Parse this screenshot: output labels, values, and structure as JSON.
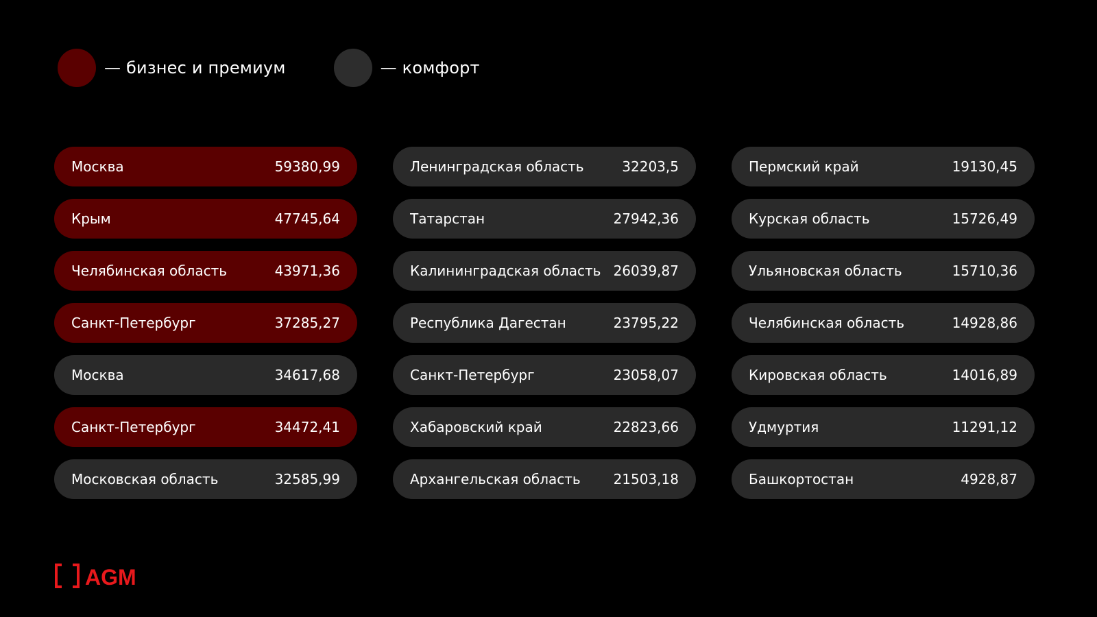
{
  "colors": {
    "premium": "#5a0000",
    "comfort": "#2a2a2a",
    "legend_premium_dot": "#5a0000",
    "legend_comfort_dot": "#2d2d2d",
    "brand": "#e8191c"
  },
  "legend": [
    {
      "category": "premium",
      "label": "— бизнес и премиум"
    },
    {
      "category": "comfort",
      "label": "— комфорт"
    }
  ],
  "columns": [
    [
      {
        "name": "Москва",
        "value": "59380,99",
        "category": "premium"
      },
      {
        "name": "Крым",
        "value": "47745,64",
        "category": "premium"
      },
      {
        "name": "Челябинская область",
        "value": "43971,36",
        "category": "premium"
      },
      {
        "name": "Санкт-Петербург",
        "value": "37285,27",
        "category": "premium"
      },
      {
        "name": "Москва",
        "value": "34617,68",
        "category": "comfort"
      },
      {
        "name": "Санкт-Петербург",
        "value": "34472,41",
        "category": "premium"
      },
      {
        "name": "Московская область",
        "value": "32585,99",
        "category": "comfort"
      }
    ],
    [
      {
        "name": "Ленинградская область",
        "value": "32203,5",
        "category": "comfort"
      },
      {
        "name": "Татарстан",
        "value": "27942,36",
        "category": "comfort"
      },
      {
        "name": "Калининградская область",
        "value": "26039,87",
        "category": "comfort"
      },
      {
        "name": "Республика Дагестан",
        "value": "23795,22",
        "category": "comfort"
      },
      {
        "name": "Санкт-Петербург",
        "value": "23058,07",
        "category": "comfort"
      },
      {
        "name": "Хабаровский край",
        "value": "22823,66",
        "category": "comfort"
      },
      {
        "name": "Архангельская область",
        "value": "21503,18",
        "category": "comfort"
      }
    ],
    [
      {
        "name": "Пермский край",
        "value": "19130,45",
        "category": "comfort"
      },
      {
        "name": "Курская область",
        "value": "15726,49",
        "category": "comfort"
      },
      {
        "name": "Ульяновская область",
        "value": "15710,36",
        "category": "comfort"
      },
      {
        "name": "Челябинская область",
        "value": "14928,86",
        "category": "comfort"
      },
      {
        "name": "Кировская область",
        "value": "14016,89",
        "category": "comfort"
      },
      {
        "name": "Удмуртия",
        "value": "11291,12",
        "category": "comfort"
      },
      {
        "name": "Башкортостан",
        "value": "4928,87",
        "category": "comfort"
      }
    ]
  ],
  "logo": {
    "text": "AGM"
  }
}
